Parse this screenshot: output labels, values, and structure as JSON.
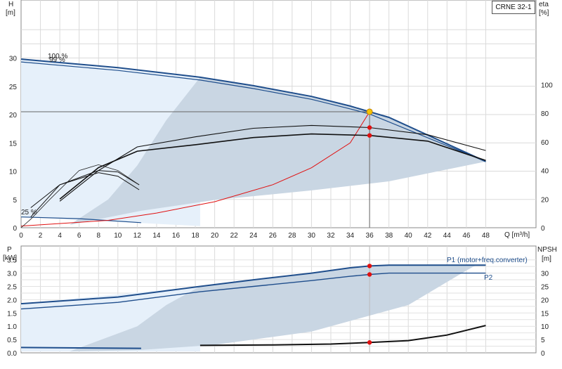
{
  "title": "CRNE 32-1",
  "chart_data": [
    {
      "type": "line",
      "name": "head",
      "xlabel": "Q [m³/h]",
      "ylabel": "H\n[m]",
      "y2label": "eta\n[%]",
      "xlim": [
        0,
        50
      ],
      "ylim": [
        0,
        35
      ],
      "y2lim": [
        0,
        119
      ],
      "x_ticks": [
        "0",
        "2",
        "4",
        "6",
        "8",
        "10",
        "12",
        "14",
        "16",
        "18",
        "20",
        "22",
        "24",
        "26",
        "28",
        "30",
        "32",
        "34",
        "36",
        "38",
        "40",
        "42",
        "44",
        "46",
        "48"
      ],
      "y_ticks": [
        "0",
        "5",
        "10",
        "15",
        "20",
        "25",
        "30"
      ],
      "y2_ticks": [
        "0",
        "20",
        "40",
        "60",
        "80",
        "100"
      ],
      "annotations": [
        "100 %",
        "99 %",
        "25 %"
      ],
      "duty_point": {
        "x": 36,
        "y": 20.5
      },
      "series": [
        {
          "name": "100 %",
          "points": [
            [
              0,
              29.8
            ],
            [
              10,
              28.3
            ],
            [
              18.5,
              26.6
            ],
            [
              24,
              25.1
            ],
            [
              30,
              23.2
            ],
            [
              34,
              21.5
            ],
            [
              36,
              20.5
            ],
            [
              38,
              19.5
            ],
            [
              48,
              11.7
            ]
          ]
        },
        {
          "name": "99 %",
          "points": [
            [
              0,
              29.3
            ],
            [
              10,
              27.8
            ],
            [
              18.5,
              26.1
            ],
            [
              24,
              24.6
            ],
            [
              30,
              22.7
            ],
            [
              34,
              21.0
            ],
            [
              36,
              20.1
            ],
            [
              48,
              11.7
            ]
          ]
        },
        {
          "name": "25 %",
          "points": [
            [
              0,
              1.9
            ],
            [
              6,
              1.6
            ],
            [
              12.4,
              0.9
            ]
          ]
        },
        {
          "points": [
            [
              0,
              0.3
            ],
            [
              9,
              1.3
            ],
            [
              14,
              2.6
            ],
            [
              20,
              4.6
            ],
            [
              26,
              7.6
            ],
            [
              30,
              10.6
            ],
            [
              34,
              15.0
            ],
            [
              36,
              20.5
            ]
          ]
        },
        {
          "points": [
            [
              4,
              18.5
            ],
            [
              8,
              40.0
            ],
            [
              12,
              56.5
            ],
            [
              18,
              63.5
            ],
            [
              24,
              69.5
            ],
            [
              30,
              71.5
            ],
            [
              36,
              70.0
            ],
            [
              42,
              65.0
            ],
            [
              48,
              54.0
            ]
          ]
        },
        {
          "points": [
            [
              4,
              20.0
            ],
            [
              8,
              42.0
            ],
            [
              12,
              53.5
            ],
            [
              18,
              58.0
            ],
            [
              24,
              63.0
            ],
            [
              30,
              65.5
            ],
            [
              36,
              64.5
            ],
            [
              42,
              60.5
            ],
            [
              48,
              47.0
            ]
          ]
        },
        {
          "points": [
            [
              1,
              14.0
            ],
            [
              4,
              30.0
            ],
            [
              8,
              40.0
            ],
            [
              10,
              39.0
            ],
            [
              12.2,
              30.0
            ]
          ]
        },
        {
          "points": [
            [
              1,
              7.5
            ],
            [
              4,
              30.0
            ],
            [
              8,
              38.5
            ],
            [
              10,
              36.0
            ],
            [
              12.2,
              26.5
            ]
          ]
        },
        {
          "points": [
            [
              0,
              0
            ],
            [
              1,
              6.0
            ],
            [
              3,
              20.0
            ],
            [
              6,
              40.0
            ],
            [
              8,
              44.0
            ],
            [
              10,
              40.0
            ],
            [
              12.2,
              30.0
            ]
          ]
        }
      ],
      "eta_markers": [
        [
          36,
          70.0
        ],
        [
          36,
          64.5
        ]
      ]
    },
    {
      "type": "line",
      "name": "power",
      "xlabel": "",
      "ylabel": "P\n[kW]",
      "y2label": "NPSH\n[m]",
      "xlim": [
        0,
        50
      ],
      "ylim": [
        0,
        3.6
      ],
      "y2lim": [
        0,
        36
      ],
      "y_ticks": [
        "0.0",
        "0.5",
        "1.0",
        "1.5",
        "2.0",
        "2.5",
        "3.0",
        "3.5"
      ],
      "y2_ticks": [
        "0",
        "5",
        "10",
        "15",
        "20",
        "25",
        "30"
      ],
      "series": [
        {
          "name": "P1 (motor+freq.converter)",
          "points": [
            [
              0,
              1.85
            ],
            [
              10,
              2.1
            ],
            [
              18.5,
              2.5
            ],
            [
              24,
              2.75
            ],
            [
              30,
              3.0
            ],
            [
              34,
              3.2
            ],
            [
              36,
              3.27
            ],
            [
              38,
              3.3
            ],
            [
              48,
              3.3
            ]
          ]
        },
        {
          "name": "P2",
          "points": [
            [
              0,
              1.65
            ],
            [
              10,
              1.9
            ],
            [
              18.5,
              2.3
            ],
            [
              24,
              2.5
            ],
            [
              30,
              2.72
            ],
            [
              34,
              2.88
            ],
            [
              36,
              2.95
            ],
            [
              38,
              3.0
            ],
            [
              48,
              3.0
            ]
          ]
        },
        {
          "name": "NPSH",
          "points": [
            [
              18.5,
              2.8
            ],
            [
              26,
              3.0
            ],
            [
              32,
              3.3
            ],
            [
              36,
              3.9
            ],
            [
              40,
              4.6
            ],
            [
              44,
              6.7
            ],
            [
              48,
              10.3
            ]
          ]
        },
        {
          "points": [
            [
              0,
              0.2
            ],
            [
              12.4,
              0.17
            ]
          ]
        }
      ],
      "markers": [
        [
          36,
          3.27
        ],
        [
          36,
          2.95
        ]
      ],
      "npsh_marker": [
        36,
        3.9
      ]
    }
  ],
  "labels": {
    "h": "H",
    "h_unit": "[m]",
    "eta": "eta",
    "eta_unit": "[%]",
    "q": "Q [m³/h]",
    "p": "P",
    "p_unit": "[kW]",
    "npsh": "NPSH",
    "npsh_unit": "[m]",
    "p1": "P1 (motor+freq.converter)",
    "p2": "P2",
    "pct100": "100 %",
    "pct99": "99 %",
    "pct25": "25 %"
  },
  "colors": {
    "curve_blue": "#1f4e8c",
    "area_dark": "#c9d6e3",
    "area_light": "#e6f0fa",
    "red": "#e01010",
    "duty": "#f5c400"
  }
}
